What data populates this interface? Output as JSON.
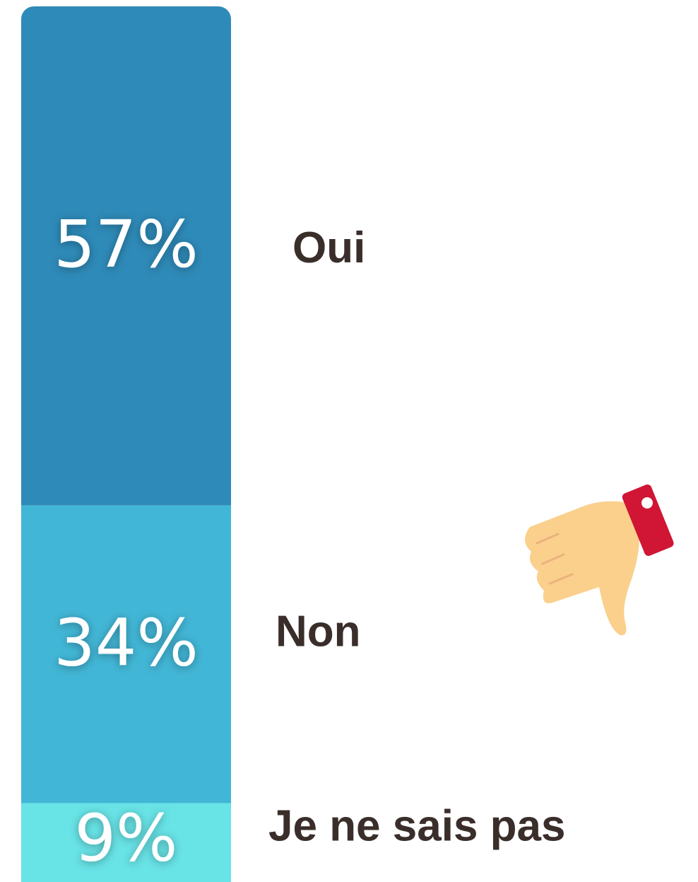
{
  "chart_data": {
    "type": "bar",
    "stacked": true,
    "categories": [
      "Oui",
      "Non",
      "Je ne sais pas"
    ],
    "values": [
      57,
      34,
      9
    ],
    "value_labels": [
      "57%",
      "34%",
      "9%"
    ],
    "colors": [
      "#2e8ab8",
      "#42b6d6",
      "#68e3e6"
    ]
  }
}
